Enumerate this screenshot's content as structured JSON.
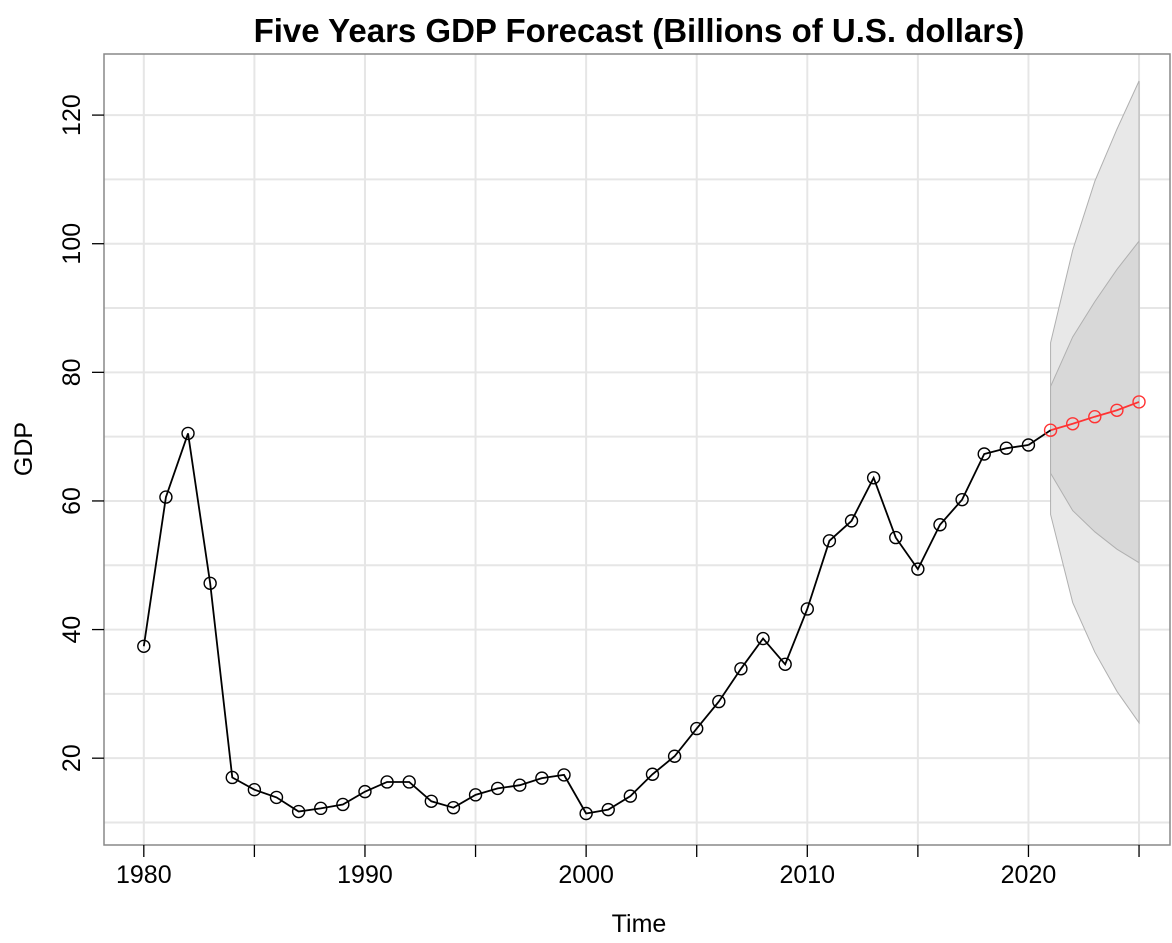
{
  "chart_data": {
    "type": "line",
    "title": "Five Years GDP Forecast (Billions of U.S. dollars)",
    "xlabel": "Time",
    "ylabel": "GDP",
    "xlim": [
      1978.2,
      2026.4
    ],
    "ylim": [
      6.5,
      129.5
    ],
    "x_ticks": [
      1980,
      1990,
      2000,
      2010,
      2020
    ],
    "y_ticks": [
      20,
      40,
      60,
      80,
      100,
      120
    ],
    "grid": true,
    "x_minor_ticks": [
      1985,
      1995,
      2005,
      2015,
      2025
    ],
    "series": [
      {
        "color": "#000000",
        "marker": "open-circle",
        "x": [
          1980,
          1981,
          1982,
          1983,
          1984,
          1985,
          1986,
          1987,
          1988,
          1989,
          1990,
          1991,
          1992,
          1993,
          1994,
          1995,
          1996,
          1997,
          1998,
          1999,
          2000,
          2001,
          2002,
          2003,
          2004,
          2005,
          2006,
          2007,
          2008,
          2009,
          2010,
          2011,
          2012,
          2013,
          2014,
          2015,
          2016,
          2017,
          2018,
          2019,
          2020
        ],
        "values": [
          37.4,
          60.6,
          70.5,
          47.2,
          17.0,
          15.1,
          13.9,
          11.7,
          12.2,
          12.8,
          14.8,
          16.3,
          16.3,
          13.3,
          12.3,
          14.3,
          15.3,
          15.8,
          16.9,
          17.4,
          11.4,
          12.0,
          14.1,
          17.5,
          20.3,
          24.6,
          28.8,
          33.9,
          38.6,
          34.6,
          43.2,
          53.8,
          56.9,
          63.6,
          54.3,
          49.4,
          56.3,
          60.2,
          67.3,
          68.2,
          68.7
        ]
      },
      {
        "color": "#ff3333",
        "marker": "open-circle",
        "x": [
          2021,
          2022,
          2023,
          2024,
          2025
        ],
        "values": [
          71.0,
          72.0,
          73.1,
          74.1,
          75.4
        ]
      }
    ],
    "forecast_intervals": {
      "x": [
        2021,
        2022,
        2023,
        2024,
        2025
      ],
      "lo95": [
        57.9,
        44.2,
        36.5,
        30.4,
        25.5
      ],
      "hi95": [
        84.6,
        99.0,
        109.7,
        117.8,
        125.3
      ],
      "lo80": [
        64.3,
        58.5,
        55.2,
        52.5,
        50.4
      ],
      "hi80": [
        77.8,
        85.5,
        91.0,
        96.0,
        100.4
      ],
      "color_95": "#e8e8e8",
      "color_80": "#d8d8d8"
    }
  }
}
